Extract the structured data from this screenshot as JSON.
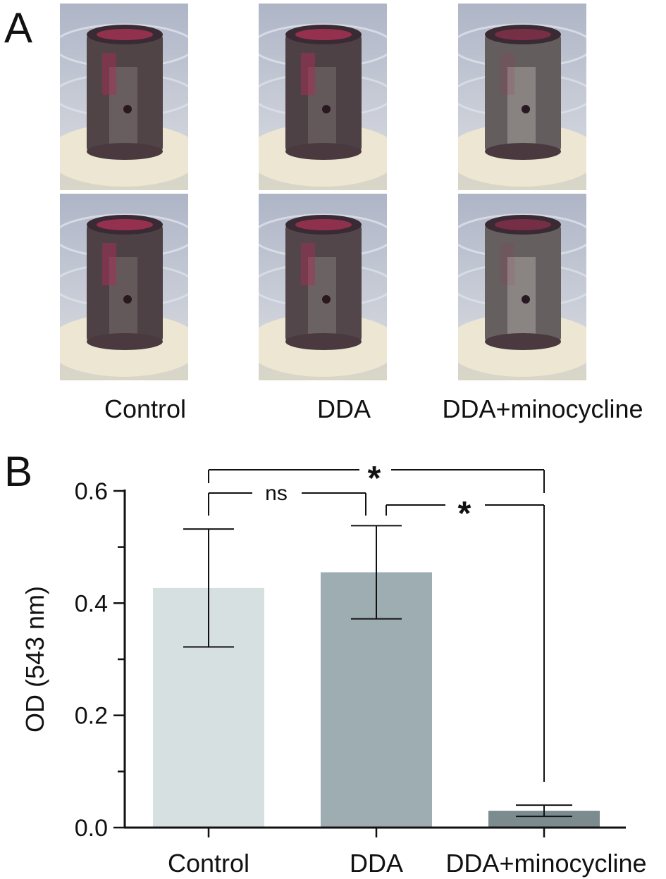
{
  "panel_a": {
    "letter": "A",
    "groups": [
      {
        "label": "Control"
      },
      {
        "label": "DDA"
      },
      {
        "label": "DDA+minocycline"
      }
    ]
  },
  "panel_b": {
    "letter": "B"
  },
  "colors": {
    "control_bar": "#d6e0e0",
    "dda_bar": "#9eadb2",
    "mino_bar": "#7b8b8e",
    "axis": "#111111"
  },
  "chart_data": {
    "type": "bar",
    "title": "",
    "xlabel": "",
    "ylabel": "OD (543 nm)",
    "ylim": [
      0.0,
      0.6
    ],
    "yticks": [
      "0.0",
      "0.2",
      "0.4",
      "0.6"
    ],
    "categories": [
      "Control",
      "DDA",
      "DDA+minocycline"
    ],
    "values": [
      0.427,
      0.455,
      0.03
    ],
    "errors": [
      0.105,
      0.083,
      0.01
    ],
    "annotations": [
      {
        "from": "Control",
        "to": "DDA",
        "label": "ns"
      },
      {
        "from": "DDA",
        "to": "DDA+minocycline",
        "label": "*"
      },
      {
        "from": "Control",
        "to": "DDA+minocycline",
        "label": "*"
      }
    ],
    "grid": false,
    "legend": "none"
  }
}
